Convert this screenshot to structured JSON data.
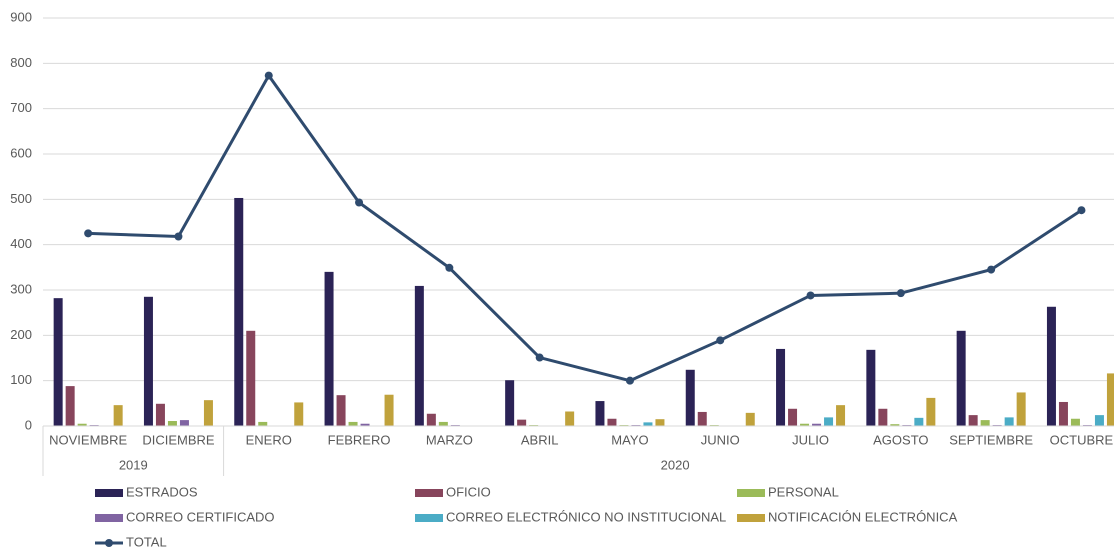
{
  "chart_data": {
    "type": "bar",
    "categories": [
      "NOVIEMBRE",
      "DICIEMBRE",
      "ENERO",
      "FEBRERO",
      "MARZO",
      "ABRIL",
      "MAYO",
      "JUNIO",
      "JULIO",
      "AGOSTO",
      "SEPTIEMBRE",
      "OCTUBRE"
    ],
    "groups": [
      {
        "label": "2019",
        "span": 2
      },
      {
        "label": "2020",
        "span": 10
      }
    ],
    "ylim": [
      0,
      900
    ],
    "yticks": [
      0,
      100,
      200,
      300,
      400,
      500,
      600,
      700,
      800,
      900
    ],
    "grid": true,
    "series": [
      {
        "name": "ESTRADOS",
        "color": "#2b2356",
        "values": [
          282,
          285,
          503,
          340,
          309,
          101,
          55,
          124,
          170,
          168,
          210,
          263
        ]
      },
      {
        "name": "OFICIO",
        "color": "#87455c",
        "values": [
          88,
          49,
          210,
          68,
          27,
          14,
          16,
          31,
          38,
          38,
          24,
          53
        ]
      },
      {
        "name": "PERSONAL",
        "color": "#9bbb59",
        "values": [
          5,
          11,
          9,
          9,
          9,
          2,
          2,
          2,
          5,
          4,
          13,
          16
        ]
      },
      {
        "name": "CORREO CERTIFICADO",
        "color": "#8064a2",
        "values": [
          2,
          13,
          0,
          5,
          2,
          0,
          2,
          0,
          5,
          2,
          2,
          2
        ]
      },
      {
        "name": "CORREO ELECTRÓNICO NO INSTITUCIONAL",
        "color": "#4bacc6",
        "values": [
          0,
          0,
          0,
          0,
          0,
          0,
          8,
          0,
          19,
          18,
          19,
          24
        ]
      },
      {
        "name": "NOTIFICACIÓN ELECTRÓNICA",
        "color": "#c0a23c",
        "values": [
          46,
          57,
          52,
          69,
          0,
          32,
          15,
          29,
          46,
          62,
          74,
          116
        ]
      },
      {
        "name": "TOTAL",
        "color": "#2f4b6e",
        "type": "line",
        "values": [
          425,
          418,
          773,
          493,
          349,
          151,
          100,
          189,
          288,
          293,
          345,
          476
        ]
      }
    ]
  }
}
